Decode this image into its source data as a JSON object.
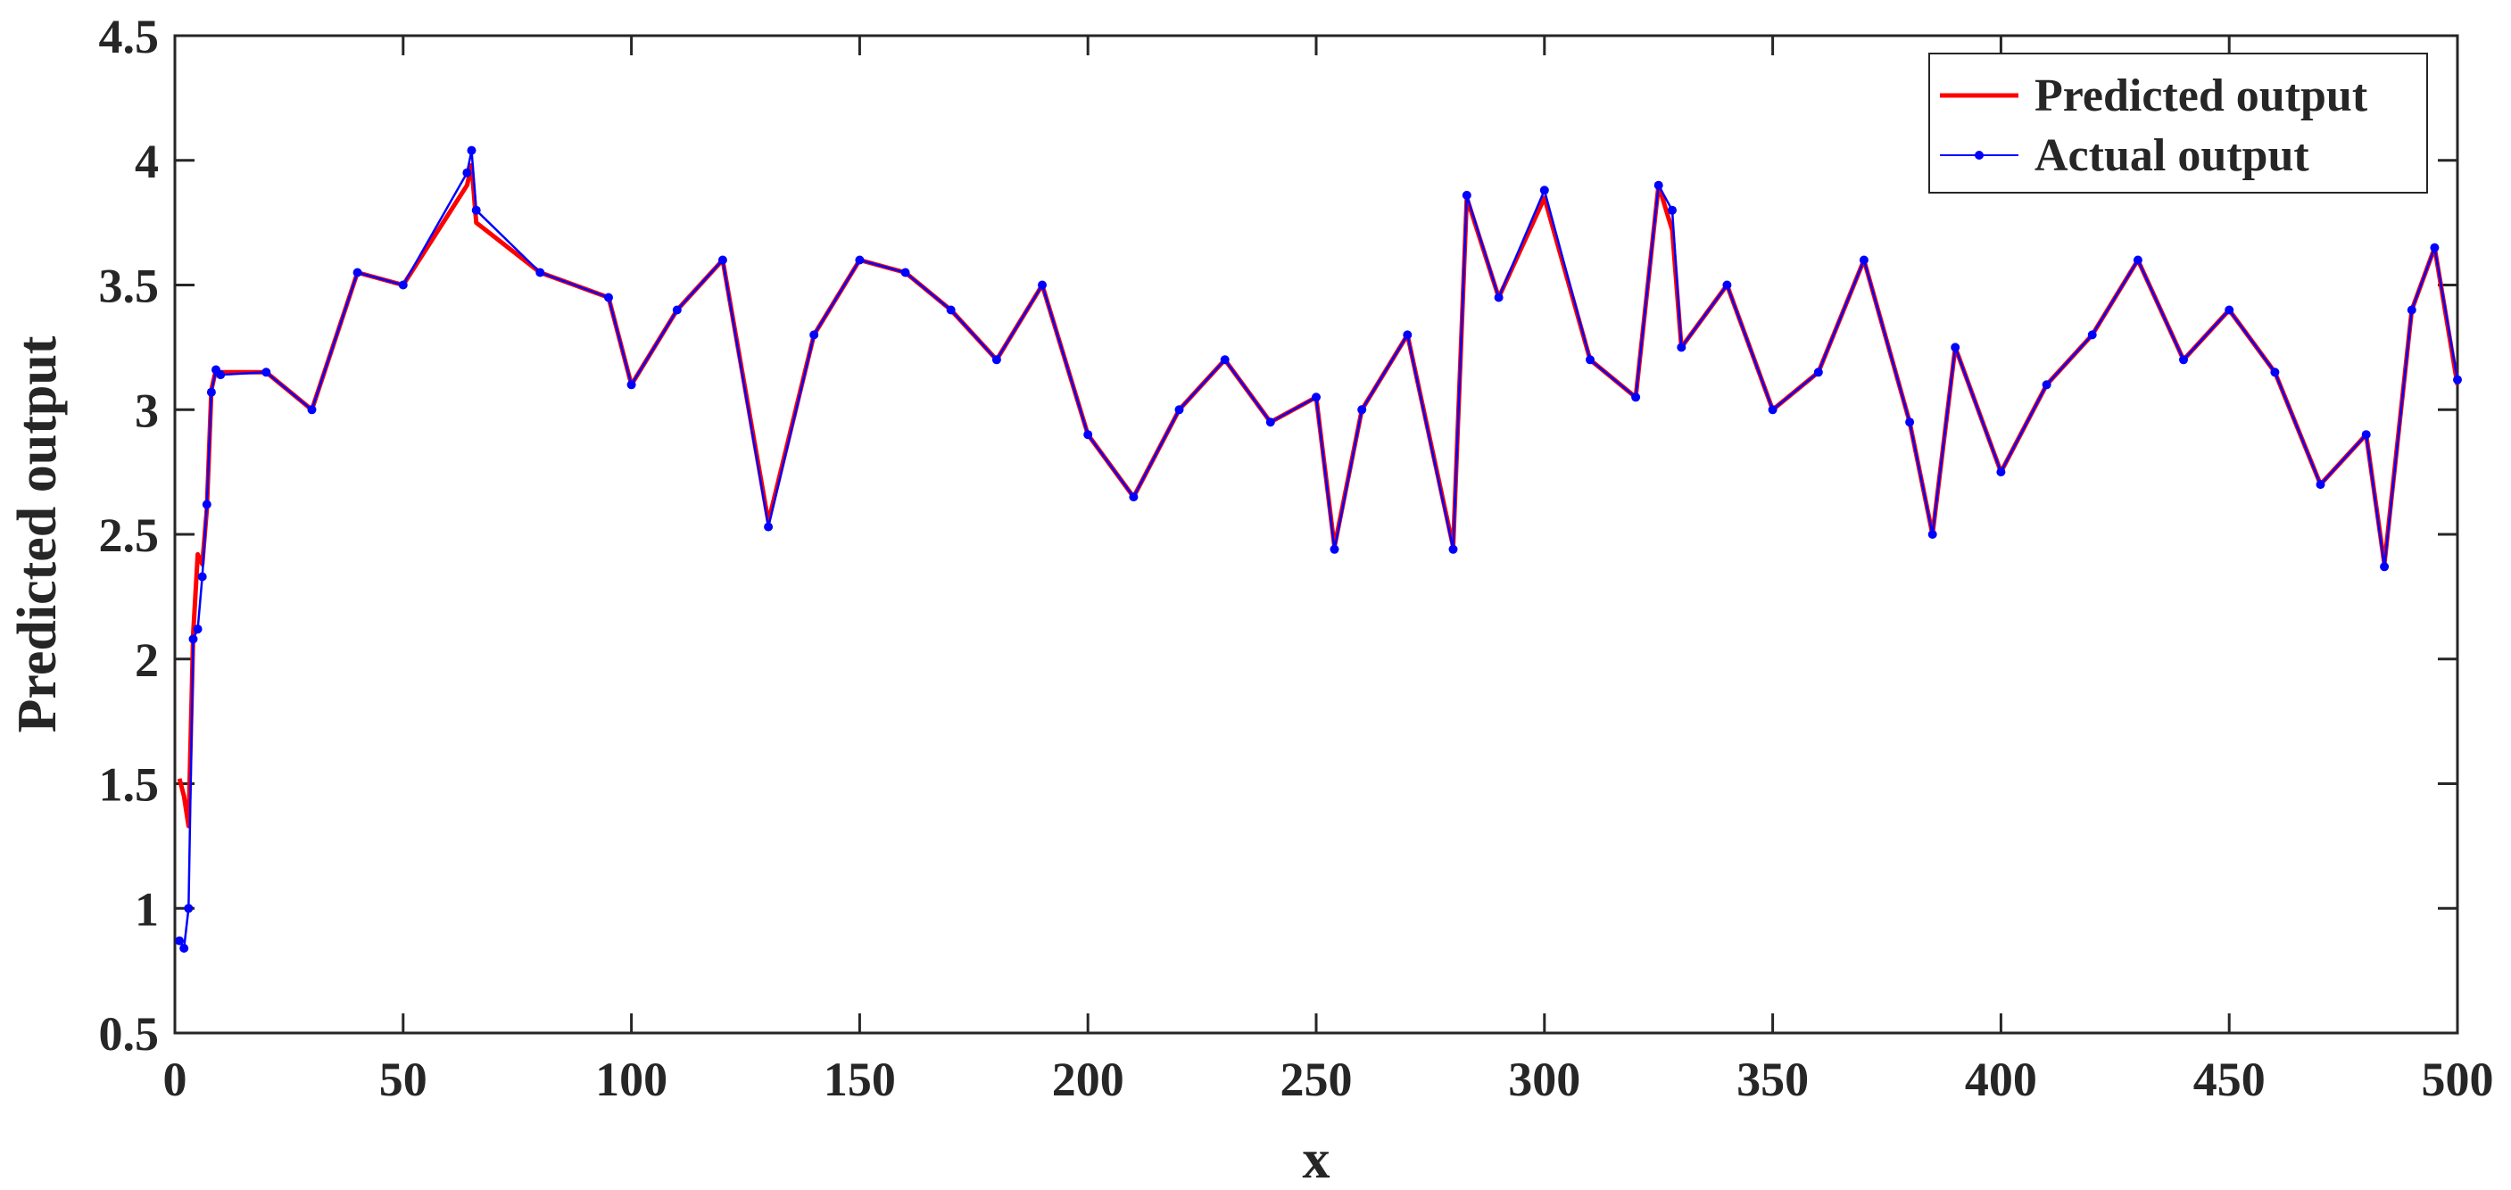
{
  "chart_data": {
    "type": "line",
    "title": "",
    "xlabel": "x",
    "ylabel": "Predicted output",
    "xlim": [
      0,
      500
    ],
    "ylim": [
      0.5,
      4.5
    ],
    "x_ticks": [
      0,
      50,
      100,
      150,
      200,
      250,
      300,
      350,
      400,
      450,
      500
    ],
    "y_ticks": [
      0.5,
      1,
      1.5,
      2,
      2.5,
      3,
      3.5,
      4,
      4.5
    ],
    "x_tick_labels": [
      "0",
      "50",
      "100",
      "150",
      "200",
      "250",
      "300",
      "350",
      "400",
      "450",
      "500"
    ],
    "y_tick_labels": [
      "0.5",
      "1",
      "1.5",
      "2",
      "2.5",
      "3",
      "3.5",
      "4",
      "4.5"
    ],
    "grid": false,
    "legend_position": "top-right",
    "series": [
      {
        "name": "Predicted output",
        "color": "#ff0000",
        "style": "line",
        "x": [
          1,
          2,
          3,
          4,
          5,
          6,
          7,
          8,
          9,
          10,
          20,
          30,
          40,
          50,
          64,
          65,
          66,
          80,
          95,
          100,
          110,
          120,
          130,
          140,
          150,
          160,
          170,
          180,
          190,
          200,
          210,
          220,
          230,
          240,
          250,
          254,
          260,
          270,
          280,
          283,
          290,
          300,
          310,
          320,
          325,
          328,
          330,
          340,
          350,
          360,
          370,
          380,
          385,
          390,
          400,
          410,
          420,
          430,
          440,
          450,
          460,
          470,
          480,
          484,
          490,
          495,
          500
        ],
        "y": [
          1.52,
          1.45,
          1.33,
          2.1,
          2.42,
          2.38,
          2.6,
          3.08,
          3.16,
          3.15,
          3.15,
          3.0,
          3.55,
          3.5,
          3.9,
          3.98,
          3.75,
          3.55,
          3.45,
          3.1,
          3.4,
          3.6,
          2.55,
          3.3,
          3.6,
          3.55,
          3.4,
          3.2,
          3.5,
          2.9,
          2.65,
          3.0,
          3.2,
          2.95,
          3.05,
          2.45,
          3.0,
          3.3,
          2.45,
          3.85,
          3.45,
          3.85,
          3.2,
          3.05,
          3.9,
          3.72,
          3.25,
          3.5,
          3.0,
          3.15,
          3.6,
          2.95,
          2.5,
          3.25,
          2.75,
          3.1,
          3.3,
          3.6,
          3.2,
          3.4,
          3.15,
          2.7,
          2.9,
          2.38,
          3.4,
          3.65,
          3.1
        ]
      },
      {
        "name": "Actual output",
        "color": "#0000ff",
        "style": "line+markers",
        "x": [
          1,
          2,
          3,
          4,
          5,
          6,
          7,
          8,
          9,
          10,
          20,
          30,
          40,
          50,
          64,
          65,
          66,
          80,
          95,
          100,
          110,
          120,
          130,
          140,
          150,
          160,
          170,
          180,
          190,
          200,
          210,
          220,
          230,
          240,
          250,
          254,
          260,
          270,
          280,
          283,
          290,
          300,
          310,
          320,
          325,
          328,
          330,
          340,
          350,
          360,
          370,
          380,
          385,
          390,
          400,
          410,
          420,
          430,
          440,
          450,
          460,
          470,
          480,
          484,
          490,
          495,
          500
        ],
        "y": [
          0.87,
          0.84,
          1.0,
          2.08,
          2.12,
          2.33,
          2.62,
          3.07,
          3.16,
          3.14,
          3.15,
          3.0,
          3.55,
          3.5,
          3.95,
          4.04,
          3.8,
          3.55,
          3.45,
          3.1,
          3.4,
          3.6,
          2.53,
          3.3,
          3.6,
          3.55,
          3.4,
          3.2,
          3.5,
          2.9,
          2.65,
          3.0,
          3.2,
          2.95,
          3.05,
          2.44,
          3.0,
          3.3,
          2.44,
          3.86,
          3.45,
          3.88,
          3.2,
          3.05,
          3.9,
          3.8,
          3.25,
          3.5,
          3.0,
          3.15,
          3.6,
          2.95,
          2.5,
          3.25,
          2.75,
          3.1,
          3.3,
          3.6,
          3.2,
          3.4,
          3.15,
          2.7,
          2.9,
          2.37,
          3.4,
          3.65,
          3.12
        ]
      }
    ]
  }
}
